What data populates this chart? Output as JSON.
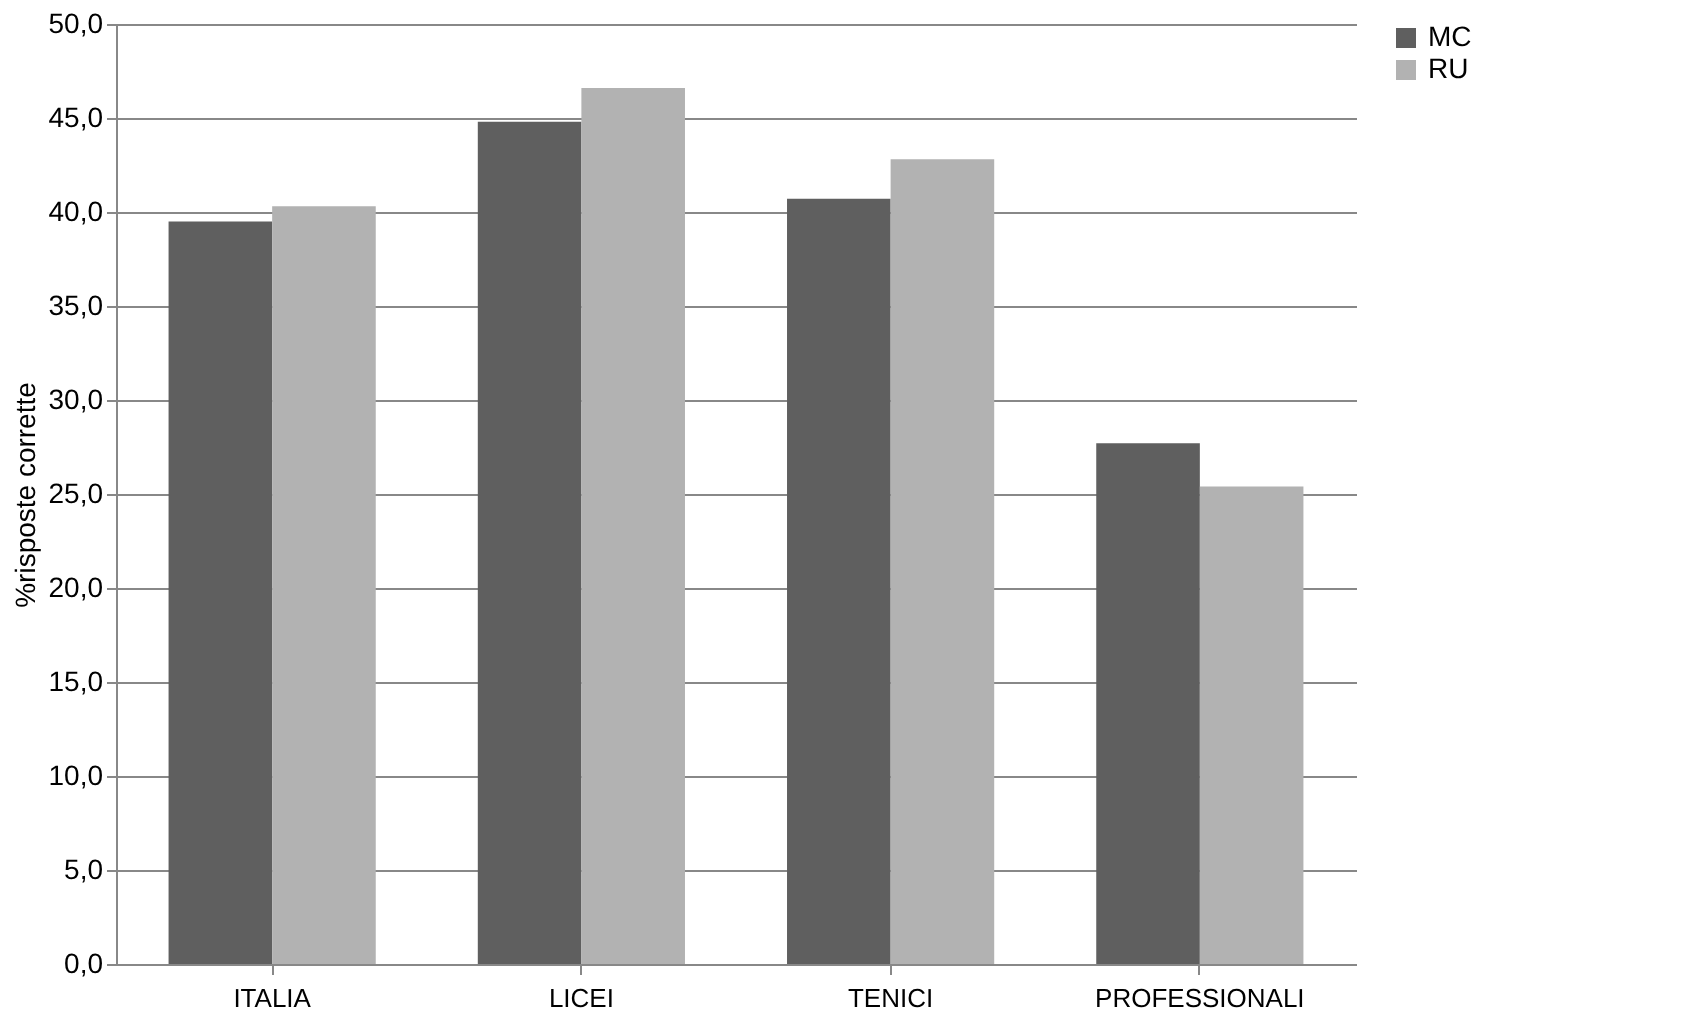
{
  "chart_data": {
    "type": "bar",
    "ylabel": "%risposte corrette",
    "categories": [
      "ITALIA",
      "LICEI",
      "TENICI",
      "PROFESSIONALI"
    ],
    "series": [
      {
        "name": "MC",
        "color": "#5f5f5f",
        "values": [
          39.5,
          44.8,
          40.7,
          27.7
        ]
      },
      {
        "name": "RU",
        "color": "#b2b2b2",
        "values": [
          40.3,
          46.6,
          42.8,
          25.4
        ]
      }
    ],
    "ylim": [
      0,
      50
    ],
    "yticks": [
      {
        "value": 0,
        "label": "0,0"
      },
      {
        "value": 5,
        "label": "5,0"
      },
      {
        "value": 10,
        "label": "10,0"
      },
      {
        "value": 15,
        "label": "15,0"
      },
      {
        "value": 20,
        "label": "20,0"
      },
      {
        "value": 25,
        "label": "25,0"
      },
      {
        "value": 30,
        "label": "30,0"
      },
      {
        "value": 35,
        "label": "35,0"
      },
      {
        "value": 40,
        "label": "40,0"
      },
      {
        "value": 45,
        "label": "45,0"
      },
      {
        "value": 50,
        "label": "50,0"
      }
    ],
    "grid": "y",
    "legend": "right"
  }
}
